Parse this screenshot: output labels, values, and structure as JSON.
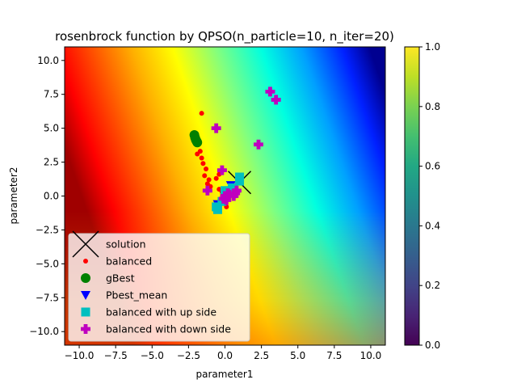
{
  "chart_data": {
    "type": "scatter",
    "title": "rosenbrock function by QPSO(n_particle=10, n_iter=20)",
    "xlabel": "parameter1",
    "ylabel": "parameter2",
    "xlim": [
      -11,
      11
    ],
    "ylim": [
      -11,
      11
    ],
    "xticks": [
      -10.0,
      -7.5,
      -5.0,
      -2.5,
      0.0,
      2.5,
      5.0,
      7.5,
      10.0
    ],
    "yticks": [
      -10.0,
      -7.5,
      -5.0,
      -2.5,
      0.0,
      2.5,
      5.0,
      7.5,
      10.0
    ],
    "grid": false,
    "legend_position": "lower-left",
    "background": "rosenbrock function heatmap, jet colormap",
    "colorbar": {
      "colormap": "viridis",
      "range": [
        0.0,
        1.0
      ],
      "ticks": [
        0.0,
        0.2,
        0.4,
        0.6,
        0.8,
        1.0
      ]
    },
    "series": [
      {
        "name": "solution",
        "marker": "x",
        "color": "#000000",
        "points": [
          [
            1,
            1
          ]
        ]
      },
      {
        "name": "balanced",
        "marker": "dot",
        "color": "#ff0000",
        "points": [
          [
            -1.6,
            6.1
          ],
          [
            -1.7,
            3.3
          ],
          [
            -1.9,
            3.1
          ],
          [
            -1.6,
            2.8
          ],
          [
            -1.5,
            2.4
          ],
          [
            -1.3,
            2.0
          ],
          [
            -1.4,
            1.5
          ],
          [
            -1.1,
            1.2
          ],
          [
            -1.2,
            0.9
          ],
          [
            -1.0,
            0.7
          ],
          [
            -0.6,
            1.3
          ],
          [
            -0.4,
            1.6
          ],
          [
            -0.2,
            0.3
          ],
          [
            0.0,
            0.2
          ],
          [
            -0.1,
            -0.4
          ],
          [
            0.1,
            -0.8
          ],
          [
            -0.4,
            0.5
          ]
        ]
      },
      {
        "name": "gBest",
        "marker": "circle",
        "color": "#008000",
        "points": [
          [
            -2.1,
            4.5
          ],
          [
            -2.05,
            4.3
          ],
          [
            -2.0,
            4.15
          ],
          [
            -1.95,
            4.05
          ],
          [
            -1.9,
            3.95
          ]
        ]
      },
      {
        "name": "Pbest_mean",
        "marker": "triangle-down",
        "color": "#0000ff",
        "points": [
          [
            0.4,
            0.8
          ],
          [
            0.2,
            0.4
          ],
          [
            0.1,
            0.2
          ],
          [
            -0.5,
            -0.6
          ]
        ]
      },
      {
        "name": "balanced with up side",
        "marker": "square",
        "color": "#00bfbf",
        "points": [
          [
            1.0,
            1.4
          ],
          [
            1.0,
            1.1
          ],
          [
            0.0,
            0.4
          ],
          [
            0.0,
            0.2
          ],
          [
            0.1,
            0.0
          ],
          [
            -0.2,
            -0.4
          ],
          [
            -0.6,
            -0.8
          ],
          [
            -0.5,
            -1.0
          ],
          [
            0.5,
            0.6
          ]
        ]
      },
      {
        "name": "balanced with down side",
        "marker": "plus",
        "color": "#bf00bf",
        "points": [
          [
            3.1,
            7.7
          ],
          [
            3.5,
            7.1
          ],
          [
            -0.6,
            5.0
          ],
          [
            2.3,
            3.8
          ],
          [
            -0.2,
            1.9
          ],
          [
            -1.2,
            0.4
          ],
          [
            0.0,
            0.0
          ],
          [
            0.3,
            0.1
          ],
          [
            0.6,
            0.0
          ],
          [
            0.7,
            0.2
          ],
          [
            0.8,
            0.4
          ],
          [
            -0.1,
            -0.2
          ],
          [
            0.1,
            -0.3
          ],
          [
            0.2,
            0.2
          ]
        ]
      }
    ]
  }
}
